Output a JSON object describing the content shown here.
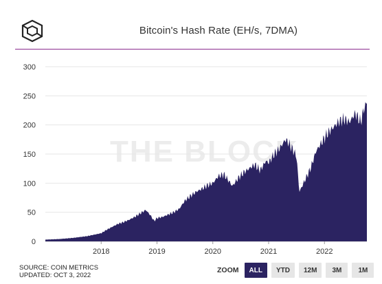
{
  "header": {
    "title": "Bitcoin's Hash Rate (EH/s, 7DMA)",
    "logo_icon": "cube-logo-icon"
  },
  "watermark": "THE BLOCK",
  "footer": {
    "source": "SOURCE: COIN METRICS",
    "updated": "UPDATED: OCT 3, 2022"
  },
  "zoom": {
    "label": "ZOOM",
    "options": [
      "ALL",
      "YTD",
      "12M",
      "3M",
      "1M"
    ],
    "selected": "ALL"
  },
  "colors": {
    "fill": "#2b2361",
    "accent": "#8a2a8e",
    "grid": "#e6e6e6"
  },
  "chart_data": {
    "type": "area",
    "title": "Bitcoin's Hash Rate (EH/s, 7DMA)",
    "ylim": [
      0,
      300
    ],
    "yticks": [
      0,
      50,
      100,
      150,
      200,
      250,
      300
    ],
    "xticks": [
      "2018",
      "2019",
      "2020",
      "2021",
      "2022"
    ],
    "xtick_years": [
      2018,
      2019,
      2020,
      2021,
      2022
    ],
    "xlim": [
      2017.0,
      2022.76
    ],
    "grid": true,
    "series": [
      {
        "x": [
          2017.0,
          2017.25,
          2017.5,
          2017.75,
          2017.9,
          2018.0,
          2018.1,
          2018.2,
          2018.3,
          2018.4,
          2018.5,
          2018.6,
          2018.7,
          2018.8,
          2018.88,
          2018.95,
          2019.0,
          2019.1,
          2019.2,
          2019.3,
          2019.4,
          2019.5,
          2019.6,
          2019.7,
          2019.8,
          2019.9,
          2020.0,
          2020.1,
          2020.2,
          2020.3,
          2020.35,
          2020.45,
          2020.55,
          2020.65,
          2020.75,
          2020.85,
          2020.95,
          2021.0,
          2021.1,
          2021.2,
          2021.3,
          2021.35,
          2021.45,
          2021.5,
          2021.55,
          2021.65,
          2021.75,
          2021.85,
          2021.95,
          2022.05,
          2022.15,
          2022.25,
          2022.35,
          2022.45,
          2022.55,
          2022.65,
          2022.7,
          2022.76
        ],
        "y": [
          3,
          4,
          6,
          9,
          12,
          14,
          20,
          25,
          30,
          33,
          37,
          42,
          48,
          54,
          45,
          35,
          40,
          42,
          46,
          50,
          56,
          70,
          78,
          85,
          90,
          96,
          100,
          112,
          115,
          102,
          95,
          108,
          118,
          125,
          132,
          122,
          138,
          135,
          150,
          160,
          175,
          170,
          155,
          145,
          85,
          105,
          125,
          155,
          170,
          185,
          195,
          205,
          210,
          205,
          220,
          205,
          225,
          240
        ]
      }
    ]
  }
}
